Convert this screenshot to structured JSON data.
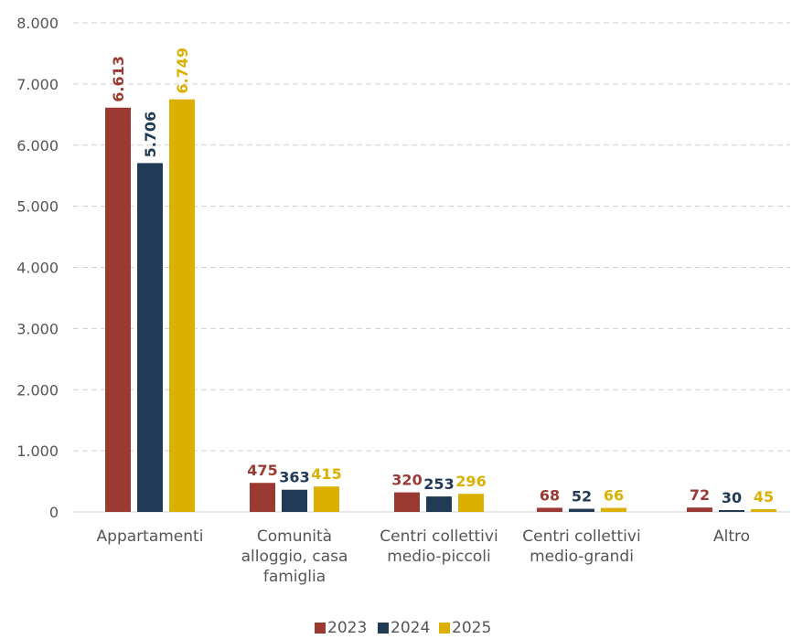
{
  "chart_data": {
    "type": "bar",
    "categories": [
      [
        "Appartamenti"
      ],
      [
        "Comunità",
        "alloggio, casa",
        "famiglia"
      ],
      [
        "Centri collettivi",
        "medio-piccoli"
      ],
      [
        "Centri collettivi",
        "medio-grandi"
      ],
      [
        "Altro"
      ]
    ],
    "series": [
      {
        "name": "2023",
        "color": "#9b3a32",
        "values": [
          6613,
          475,
          320,
          68,
          72
        ],
        "labels": [
          "6.613",
          "475",
          "320",
          "68",
          "72"
        ]
      },
      {
        "name": "2024",
        "color": "#213a55",
        "values": [
          5706,
          363,
          253,
          52,
          30
        ],
        "labels": [
          "5.706",
          "363",
          "253",
          "52",
          "30"
        ]
      },
      {
        "name": "2025",
        "color": "#dcb000",
        "values": [
          6749,
          415,
          296,
          66,
          45
        ],
        "labels": [
          "6.749",
          "415",
          "296",
          "66",
          "45"
        ]
      }
    ],
    "ylim": [
      0,
      8000
    ],
    "yticks": [
      0,
      1000,
      2000,
      3000,
      4000,
      5000,
      6000,
      7000,
      8000
    ],
    "ytick_labels": [
      "0",
      "1.000",
      "2.000",
      "3.000",
      "4.000",
      "5.000",
      "6.000",
      "7.000",
      "8.000"
    ],
    "grid": true,
    "legend_position": "bottom"
  }
}
